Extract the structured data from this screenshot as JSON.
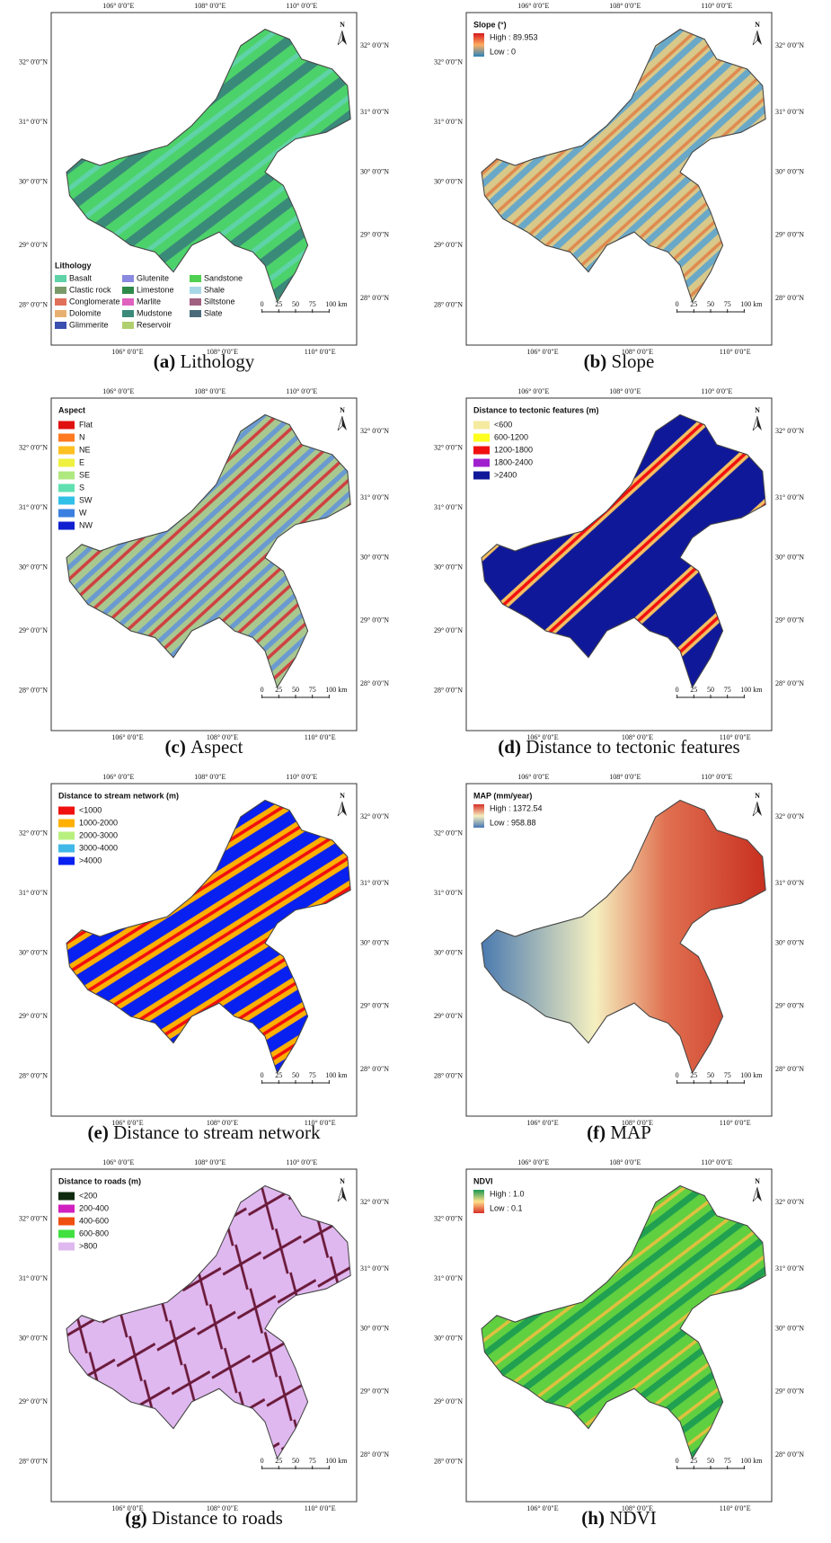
{
  "graticule": {
    "lon": [
      "106° 0′0″E",
      "108° 0′0″E",
      "110° 0′0″E"
    ],
    "lat": [
      "28° 0′0″N",
      "29° 0′0″N",
      "30° 0′0″N",
      "31° 0′0″N",
      "32° 0′0″N"
    ]
  },
  "north": "N",
  "scale_bar": [
    "0",
    "25",
    "50",
    "75",
    "100 km"
  ],
  "panels": [
    {
      "label": "(a)",
      "caption": "Lithology",
      "legend": {
        "title": "Lithology",
        "items": [
          {
            "name": "Basalt",
            "color": "#5fd3a7"
          },
          {
            "name": "Clastic rock",
            "color": "#7a9a6a"
          },
          {
            "name": "Conglomerate",
            "color": "#e0705a"
          },
          {
            "name": "Dolomite",
            "color": "#e8b070"
          },
          {
            "name": "Glimmerite",
            "color": "#3a4fb0"
          },
          {
            "name": "Glutenite",
            "color": "#8a8ae0"
          },
          {
            "name": "Limestone",
            "color": "#2f8a4a"
          },
          {
            "name": "Marlite",
            "color": "#e060c0"
          },
          {
            "name": "Mudstone",
            "color": "#3a8a7a"
          },
          {
            "name": "Reservoir",
            "color": "#b0d070"
          },
          {
            "name": "Sandstone",
            "color": "#50d050"
          },
          {
            "name": "Shale",
            "color": "#a8d8e8"
          },
          {
            "name": "Siltstone",
            "color": "#a06080"
          },
          {
            "name": "Slate",
            "color": "#4a6a7a"
          }
        ]
      }
    },
    {
      "label": "(b)",
      "caption": "Slope",
      "legend": {
        "title": "Slope (°)",
        "ramp": [
          "#d7191c",
          "#fdae61",
          "#2b83ba"
        ],
        "items": [
          {
            "name": "High : 89.953"
          },
          {
            "name": "Low : 0"
          }
        ]
      }
    },
    {
      "label": "(c)",
      "caption": "Aspect",
      "legend": {
        "title": "Aspect",
        "items": [
          {
            "name": "Flat",
            "color": "#e01010"
          },
          {
            "name": "N",
            "color": "#ff7a20"
          },
          {
            "name": "NE",
            "color": "#ffc020"
          },
          {
            "name": "E",
            "color": "#f0f040"
          },
          {
            "name": "SE",
            "color": "#b0e880"
          },
          {
            "name": "S",
            "color": "#60e0b0"
          },
          {
            "name": "SW",
            "color": "#30c0e8"
          },
          {
            "name": "W",
            "color": "#3a80e0"
          },
          {
            "name": "NW",
            "color": "#1020d0"
          }
        ]
      }
    },
    {
      "label": "(d)",
      "caption": "Distance to tectonic features",
      "legend": {
        "title": "Distance to tectonic features (m)",
        "items": [
          {
            "name": "<600",
            "color": "#f5eaa0"
          },
          {
            "name": "600-1200",
            "color": "#ffff20"
          },
          {
            "name": "1200-1800",
            "color": "#f01010"
          },
          {
            "name": "1800-2400",
            "color": "#a020d0"
          },
          {
            "name": ">2400",
            "color": "#10189a"
          }
        ]
      }
    },
    {
      "label": "(e)",
      "caption": "Distance to stream network",
      "legend": {
        "title": "Distance to stream network (m)",
        "items": [
          {
            "name": "<1000",
            "color": "#f01010"
          },
          {
            "name": "1000-2000",
            "color": "#ffb000"
          },
          {
            "name": "2000-3000",
            "color": "#b8f080"
          },
          {
            "name": "3000-4000",
            "color": "#40b8e8"
          },
          {
            "name": ">4000",
            "color": "#0820f0"
          }
        ]
      }
    },
    {
      "label": "(f)",
      "caption": "MAP",
      "legend": {
        "title": "MAP (mm/year)",
        "ramp": [
          "#d73027",
          "#f5f0c0",
          "#4575b4"
        ],
        "items": [
          {
            "name": "High : 1372.54"
          },
          {
            "name": "Low : 958.88"
          }
        ]
      }
    },
    {
      "label": "(g)",
      "caption": "Distance to roads",
      "legend": {
        "title": "Distance to roads (m)",
        "items": [
          {
            "name": "<200",
            "color": "#102a10"
          },
          {
            "name": "200-400",
            "color": "#d020c0"
          },
          {
            "name": "400-600",
            "color": "#f05010"
          },
          {
            "name": "600-800",
            "color": "#40e040"
          },
          {
            "name": ">800",
            "color": "#e0b8f0"
          }
        ]
      }
    },
    {
      "label": "(h)",
      "caption": "NDVI",
      "legend": {
        "title": "NDVI",
        "ramp": [
          "#1a9850",
          "#fee08b",
          "#d73027"
        ],
        "items": [
          {
            "name": "High : 1.0"
          },
          {
            "name": "Low : 0.1"
          }
        ]
      }
    }
  ]
}
